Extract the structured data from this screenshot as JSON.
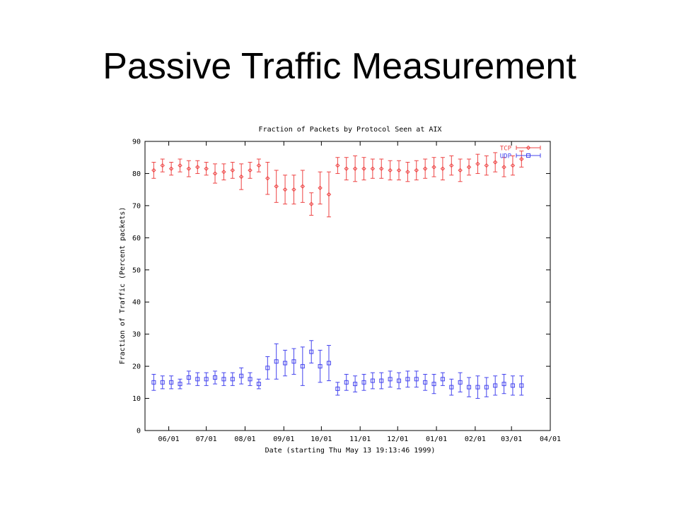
{
  "slide": {
    "title": "Passive Traffic Measurement"
  },
  "chart_data": {
    "type": "scatter",
    "title": "Fraction of Packets by Protocol Seen at AIX",
    "xlabel": "Date (starting Thu May 13 19:13:46 1999)",
    "ylabel": "Fraction of Traffic (Percent packets)",
    "ylim": [
      0,
      90
    ],
    "yticks": [
      "0",
      "10",
      "20",
      "30",
      "40",
      "50",
      "60",
      "70",
      "80",
      "90"
    ],
    "xlim": [
      "1999-05-13",
      "2000-04-01"
    ],
    "xticks": [
      {
        "date": "1999-06-01",
        "label": "06/01"
      },
      {
        "date": "1999-07-01",
        "label": "07/01"
      },
      {
        "date": "1999-08-01",
        "label": "08/01"
      },
      {
        "date": "1999-09-01",
        "label": "09/01"
      },
      {
        "date": "1999-10-01",
        "label": "10/01"
      },
      {
        "date": "1999-11-01",
        "label": "11/01"
      },
      {
        "date": "1999-12-01",
        "label": "12/01"
      },
      {
        "date": "2000-01-01",
        "label": "01/01"
      },
      {
        "date": "2000-02-01",
        "label": "02/01"
      },
      {
        "date": "2000-03-01",
        "label": "03/01"
      },
      {
        "date": "2000-04-01",
        "label": "04/01"
      }
    ],
    "x": [
      "1999-05-20",
      "1999-05-27",
      "1999-06-03",
      "1999-06-10",
      "1999-06-17",
      "1999-06-24",
      "1999-07-01",
      "1999-07-08",
      "1999-07-15",
      "1999-07-22",
      "1999-07-29",
      "1999-08-05",
      "1999-08-12",
      "1999-08-19",
      "1999-08-26",
      "1999-09-02",
      "1999-09-09",
      "1999-09-16",
      "1999-09-23",
      "1999-09-30",
      "1999-10-07",
      "1999-10-14",
      "1999-10-21",
      "1999-10-28",
      "1999-11-04",
      "1999-11-11",
      "1999-11-18",
      "1999-11-25",
      "1999-12-02",
      "1999-12-09",
      "1999-12-16",
      "1999-12-23",
      "1999-12-30",
      "2000-01-06",
      "2000-01-13",
      "2000-01-20",
      "2000-01-27",
      "2000-02-03",
      "2000-02-10",
      "2000-02-17",
      "2000-02-24",
      "2000-03-02",
      "2000-03-09"
    ],
    "series": [
      {
        "name": "TCP",
        "color": "#ee4444",
        "marker": "diamond",
        "values": [
          81,
          82.5,
          81.5,
          82.5,
          81.5,
          82,
          81.5,
          80,
          80.5,
          81,
          79,
          81,
          82.5,
          78.5,
          76,
          75,
          75,
          76,
          70.5,
          75.5,
          73.5,
          82.5,
          81.5,
          81.5,
          81.5,
          81.5,
          81.5,
          81,
          81,
          80.5,
          81,
          81.5,
          82,
          81.5,
          82.5,
          81,
          82,
          83,
          82.5,
          83.5,
          82,
          82.5,
          84.5
        ],
        "err": [
          2.5,
          2,
          2,
          2,
          2.5,
          2,
          2,
          3,
          2.5,
          2.5,
          4,
          2.5,
          2,
          5,
          5,
          4.5,
          4.5,
          5,
          3.5,
          5,
          7,
          2.5,
          3.5,
          4,
          3.5,
          3,
          3,
          3,
          3,
          3,
          3,
          3,
          3,
          3.5,
          3,
          3.5,
          2.5,
          3,
          3,
          3,
          3,
          3,
          2.5
        ]
      },
      {
        "name": "UDP",
        "color": "#4444ee",
        "marker": "square",
        "values": [
          15,
          15,
          15,
          14.5,
          16.5,
          16,
          16,
          16.5,
          16,
          16,
          17,
          16,
          14.5,
          19.5,
          21.5,
          21,
          21.5,
          20,
          24.5,
          20,
          21,
          13,
          15,
          14.5,
          15,
          15.5,
          15.5,
          16,
          15.5,
          16,
          16,
          15,
          14.5,
          16,
          13.5,
          15,
          13.5,
          13.5,
          13.5,
          14,
          14.5,
          14,
          14
        ],
        "err": [
          2.5,
          2,
          2,
          1.5,
          2,
          2,
          2,
          2,
          2,
          2,
          2.5,
          2,
          1.5,
          3.5,
          5.5,
          4,
          4,
          6,
          3.5,
          5,
          5.5,
          2,
          2.5,
          2.5,
          2.5,
          2.5,
          2.5,
          2.5,
          2.5,
          2.5,
          2.5,
          2.5,
          3,
          2,
          2.5,
          3,
          3,
          3.5,
          3,
          3,
          3,
          3,
          3
        ]
      }
    ],
    "legend": "top-right",
    "grid": false
  }
}
